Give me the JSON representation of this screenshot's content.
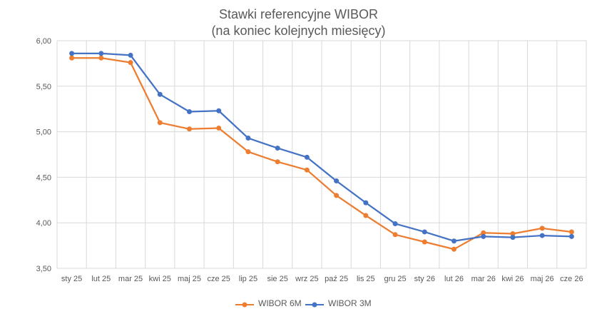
{
  "chart_data": {
    "type": "line",
    "title": "Stawki referencyjne WIBOR",
    "subtitle": "(na koniec kolejnych miesięcy)",
    "categories": [
      "sty 25",
      "lut 25",
      "mar 25",
      "kwi 25",
      "maj 25",
      "cze 25",
      "lip 25",
      "sie 25",
      "wrz 25",
      "paź 25",
      "lis 25",
      "gru 25",
      "sty 26",
      "lut 26",
      "mar 26",
      "kwi 26",
      "maj 26",
      "cze 26"
    ],
    "ylim": [
      3.5,
      6.0
    ],
    "yticks": [
      "3,50",
      "4,00",
      "4,50",
      "5,00",
      "5,50",
      "6,00"
    ],
    "ytick_values": [
      3.5,
      4.0,
      4.5,
      5.0,
      5.5,
      6.0
    ],
    "grid": true,
    "legend_position": "bottom",
    "series": [
      {
        "name": "WIBOR 6M",
        "color": "#ED7D31",
        "values": [
          5.81,
          5.81,
          5.76,
          5.1,
          5.03,
          5.04,
          4.78,
          4.67,
          4.58,
          4.3,
          4.08,
          3.87,
          3.79,
          3.71,
          3.89,
          3.88,
          3.94,
          3.9
        ]
      },
      {
        "name": "WIBOR 3M",
        "color": "#4472C4",
        "values": [
          5.86,
          5.86,
          5.84,
          5.41,
          5.22,
          5.23,
          4.93,
          4.82,
          4.72,
          4.46,
          4.22,
          3.99,
          3.9,
          3.8,
          3.85,
          3.84,
          3.86,
          3.85
        ]
      }
    ]
  }
}
